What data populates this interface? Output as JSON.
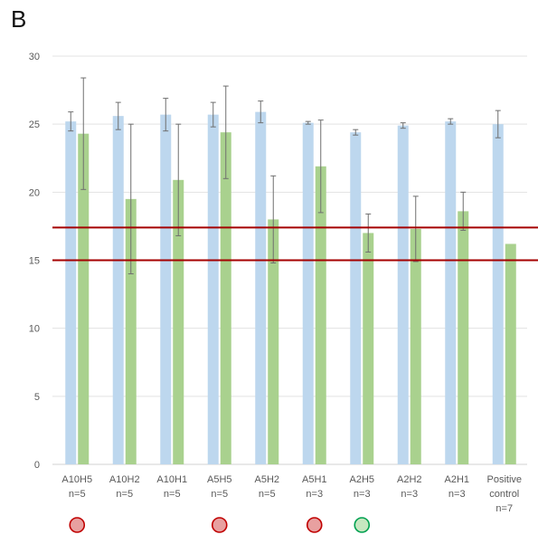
{
  "panel_label": "B",
  "chart_data": {
    "type": "bar",
    "title": "",
    "xlabel": "",
    "ylabel": "",
    "ylim": [
      0,
      30
    ],
    "yticks": [
      0,
      5,
      10,
      15,
      20,
      25,
      30
    ],
    "grid": true,
    "legend": "none",
    "categories": [
      [
        "A10H5",
        "n=5"
      ],
      [
        "A10H2",
        "n=5"
      ],
      [
        "A10H1",
        "n=5"
      ],
      [
        "A5H5",
        "n=5"
      ],
      [
        "A5H2",
        "n=5"
      ],
      [
        "A5H1",
        "n=3"
      ],
      [
        "A2H5",
        "n=3"
      ],
      [
        "A2H2",
        "n=3"
      ],
      [
        "A2H1",
        "n=3"
      ],
      [
        "Positive",
        "control",
        "n=7"
      ]
    ],
    "series": [
      {
        "color": "#bdd7ee",
        "values": [
          25.2,
          25.6,
          25.7,
          25.7,
          25.9,
          25.1,
          24.4,
          24.9,
          25.2,
          25.0
        ],
        "errors": [
          0.7,
          1.0,
          1.2,
          0.9,
          0.8,
          0.1,
          0.2,
          0.2,
          0.2,
          1.0
        ]
      },
      {
        "color": "#a9d18e",
        "values": [
          24.3,
          19.5,
          20.9,
          24.4,
          18.0,
          21.9,
          17.0,
          17.3,
          18.6,
          16.2
        ],
        "errors": [
          4.1,
          5.5,
          4.1,
          3.4,
          3.2,
          3.4,
          1.4,
          2.4,
          1.4,
          0.0
        ]
      }
    ],
    "reference_lines": [
      {
        "y": 17.4,
        "color": "#a50000"
      },
      {
        "y": 15.0,
        "color": "#a50000"
      }
    ],
    "markers": [
      {
        "category_index": 0,
        "fill": "#e8a0a0",
        "stroke": "#c00000"
      },
      {
        "category_index": 3,
        "fill": "#e8a0a0",
        "stroke": "#c00000"
      },
      {
        "category_index": 5,
        "fill": "#e8a0a0",
        "stroke": "#c00000"
      },
      {
        "category_index": 6,
        "fill": "#c6e7c0",
        "stroke": "#00a050"
      }
    ]
  }
}
